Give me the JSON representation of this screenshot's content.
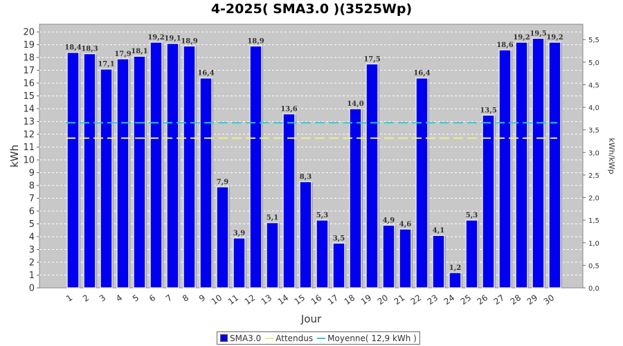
{
  "chart_data": {
    "type": "bar",
    "title": "4-2025( SMA3.0 )(3525Wp)",
    "xlabel": "Jour",
    "ylabel": "kWh",
    "ylabel_right": "kWh/kWp",
    "ylim": [
      0,
      20.6
    ],
    "ylim_right": [
      0,
      5.84
    ],
    "yticks": [
      0,
      1,
      2,
      3,
      4,
      5,
      6,
      7,
      8,
      9,
      10,
      11,
      12,
      13,
      14,
      15,
      16,
      17,
      18,
      19,
      20
    ],
    "yticks_right": [
      "0,0",
      "0,5",
      "1,0",
      "1,5",
      "2,0",
      "2,5",
      "3,0",
      "3,5",
      "4,0",
      "4,5",
      "5,0",
      "5,5"
    ],
    "categories": [
      "1",
      "2",
      "3",
      "4",
      "5",
      "6",
      "7",
      "8",
      "9",
      "10",
      "11",
      "12",
      "13",
      "14",
      "15",
      "16",
      "17",
      "18",
      "19",
      "20",
      "21",
      "22",
      "23",
      "24",
      "25",
      "26",
      "27",
      "28",
      "29",
      "30"
    ],
    "series": [
      {
        "name": "SMA3.0",
        "values": [
          18.4,
          18.3,
          17.1,
          17.9,
          18.1,
          19.2,
          19.1,
          18.9,
          16.4,
          7.9,
          3.9,
          18.9,
          5.1,
          13.6,
          8.3,
          5.3,
          3.5,
          14.0,
          17.5,
          4.9,
          4.6,
          16.4,
          4.1,
          1.2,
          5.3,
          13.5,
          18.6,
          19.2,
          19.5,
          19.2
        ],
        "labels": [
          "18,4",
          "18,3",
          "17,1",
          "17,9",
          "18,1",
          "19,2",
          "19,1",
          "18,9",
          "16,4",
          "7,9",
          "3,9",
          "18,9",
          "5,1",
          "13,6",
          "8,3",
          "5,3",
          "3,5",
          "14,0",
          "17,5",
          "4,9",
          "4,6",
          "16,4",
          "4,1",
          "1,2",
          "5,3",
          "13,5",
          "18,6",
          "19,2",
          "19,5",
          "19,2"
        ]
      }
    ],
    "reference_lines": [
      {
        "name": "Attendus",
        "value": 11.7
      },
      {
        "name": "Moyenne( 12,9 kWh )",
        "value": 12.9
      }
    ],
    "grid": true,
    "legend_position": "bottom"
  },
  "colors": {
    "bar_fill": "#0000ee",
    "plot_background": "#c8c8c8",
    "attendus_line": "#f0f080",
    "moyenne_line": "#30c8d8"
  },
  "legend": {
    "items": [
      {
        "label": "SMA3.0"
      },
      {
        "label": "Attendus"
      },
      {
        "label": "Moyenne( 12,9 kWh )"
      }
    ]
  }
}
